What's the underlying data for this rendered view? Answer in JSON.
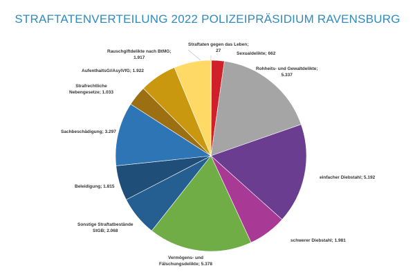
{
  "chart_data": {
    "type": "pie",
    "title": "STRAFTATENVERTEILUNG 2022 POLIZEIPRÄSIDIUM RAVENSBURG",
    "slices": [
      {
        "label": "Straftaten gegen das Leben",
        "value": 27,
        "display": "Straftaten gegen das Leben;\n27",
        "color": "#c0504d"
      },
      {
        "label": "Sexualdelikte",
        "value": 662,
        "display": "Sexualdelikte; 662",
        "color": "#d0202a"
      },
      {
        "label": "Rohheits- und Gewaltdelikte",
        "value": 5337,
        "display": "Rohheits- und Gewaltdelikte;\n5.337",
        "color": "#a5a5a5"
      },
      {
        "label": "einfacher Diebstahl",
        "value": 5192,
        "display": "einfacher Diebstahl; 5.192",
        "color": "#6a3d91"
      },
      {
        "label": "schwerer Diebstahl",
        "value": 1981,
        "display": "schwerer Diebstahl; 1.981",
        "color": "#a83a95"
      },
      {
        "label": "Vermögens- und Fälschungsdelikte",
        "value": 5378,
        "display": "Vermögens- und\nFälschungsdelikte; 5.378",
        "color": "#70ad47"
      },
      {
        "label": "Sonstige Straftatbestände StGB",
        "value": 2068,
        "display": "Sonstige Straftatbestände\nStGB; 2.068",
        "color": "#255e91"
      },
      {
        "label": "Beleidigung",
        "value": 1815,
        "display": "Beleidigung; 1.815",
        "color": "#1f4e79"
      },
      {
        "label": "Sachbeschädigung",
        "value": 3297,
        "display": "Sachbeschädigung; 3.297",
        "color": "#2e75b6"
      },
      {
        "label": "Strafrechtliche Nebengesetze",
        "value": 1033,
        "display": "Strafrechtliche\nNebengesetze; 1.033",
        "color": "#9c6f12"
      },
      {
        "label": "AufenthaltsG//AsylVfG",
        "value": 1922,
        "display": "AufenthaltsG//AsylVfG; 1.922",
        "color": "#c9980e"
      },
      {
        "label": "Rauschgiftdelikte nach BtMG",
        "value": 1917,
        "display": "Rauschgiftdelikte nach BtMG;\n1.917",
        "color": "#ffd966"
      }
    ],
    "start_angle": "top",
    "direction": "clockwise",
    "legend": "none"
  }
}
